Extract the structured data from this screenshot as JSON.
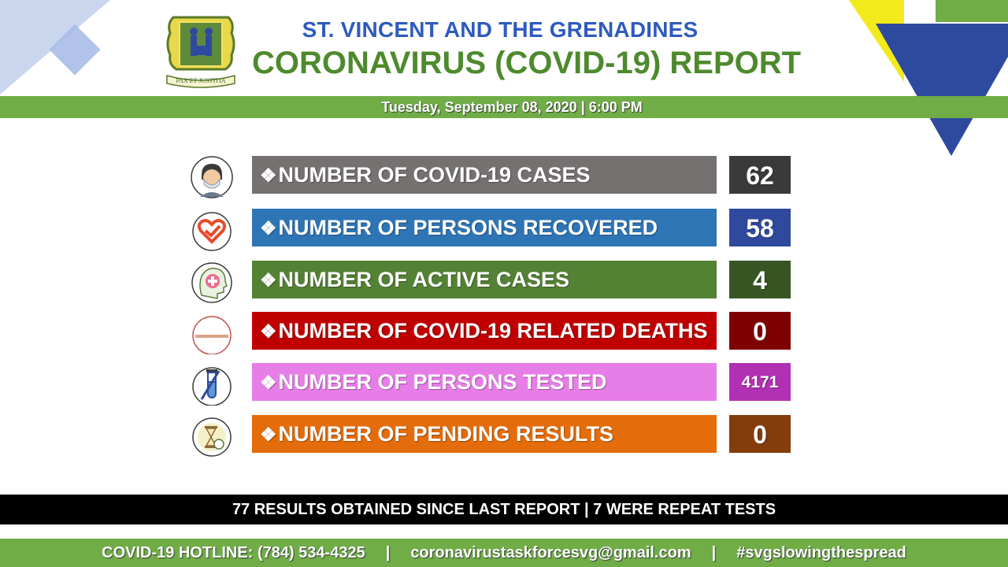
{
  "header": {
    "title_line1": "ST. VINCENT AND THE GRENADINES",
    "title_line2": "CORONAVIRUS (COVID-19) REPORT",
    "seal_motto": "PAX ET JUSTITIA",
    "date": "Tuesday, September 08, 2020 | 6:00 PM"
  },
  "stats": [
    {
      "label": "NUMBER OF COVID-19 CASES",
      "value": "62",
      "icon": "masked-person-icon",
      "label_color": "#767171",
      "value_color": "#3a3a3a"
    },
    {
      "label": "NUMBER OF PERSONS RECOVERED",
      "value": "58",
      "icon": "heart-check-icon",
      "label_color": "#2e75b6",
      "value_color": "#2f4a9c"
    },
    {
      "label": "NUMBER OF ACTIVE CASES",
      "value": "4",
      "icon": "head-medical-cross-icon",
      "label_color": "#548235",
      "value_color": "#375623"
    },
    {
      "label": "NUMBER OF COVID-19 RELATED DEATHS",
      "value": "0",
      "icon": "flat-line-icon",
      "label_color": "#c00000",
      "value_color": "#7f0000"
    },
    {
      "label": "NUMBER OF PERSONS TESTED",
      "value": "4171",
      "icon": "test-tube-icon",
      "label_color": "#e77ee8",
      "value_color": "#b230b3"
    },
    {
      "label": "NUMBER OF PENDING RESULTS",
      "value": "0",
      "icon": "hourglass-icon",
      "label_color": "#e46c0a",
      "value_color": "#843c0c"
    }
  ],
  "bullet_glyph": "❖",
  "summary": "77 RESULTS OBTAINED SINCE LAST REPORT | 7 WERE REPEAT TESTS",
  "footer": {
    "hotline": "COVID-19 HOTLINE: (784) 534-4325",
    "separator": "|",
    "email": "coronavirustaskforcesvg@gmail.com",
    "hashtag": "#svgslowingthespread"
  }
}
